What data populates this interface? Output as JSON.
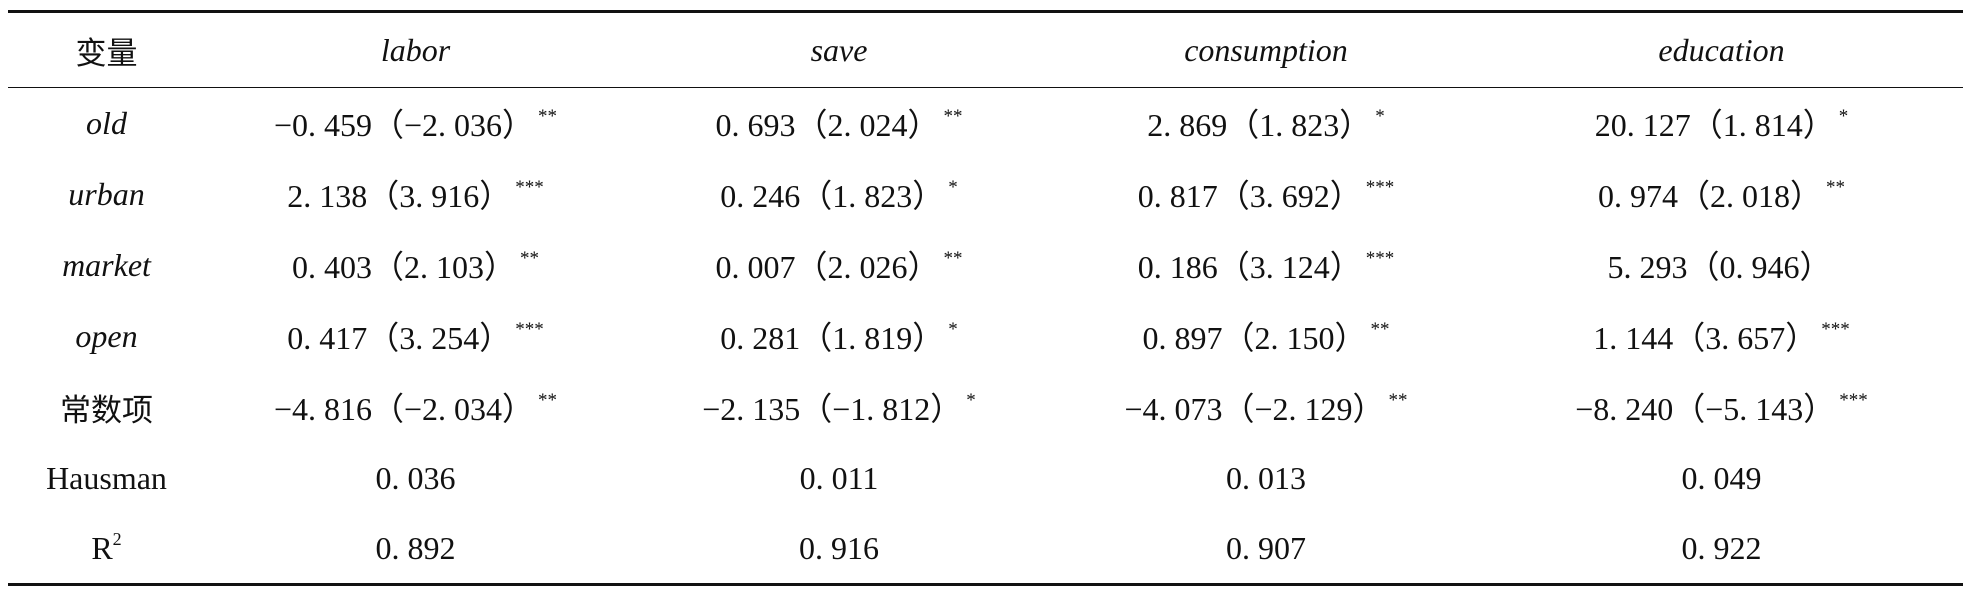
{
  "table": {
    "header": [
      "变量",
      "labor",
      "save",
      "consumption",
      "education"
    ],
    "rows": [
      {
        "label": "old",
        "cells": [
          {
            "value": "−0. 459（−2. 036）",
            "stars": "**"
          },
          {
            "value": "0. 693（2. 024）",
            "stars": "**"
          },
          {
            "value": "2. 869（1. 823）",
            "stars": "*"
          },
          {
            "value": "20. 127（1. 814）",
            "stars": "*"
          }
        ]
      },
      {
        "label": "urban",
        "cells": [
          {
            "value": "2. 138（3. 916）",
            "stars": "***"
          },
          {
            "value": "0. 246（1. 823）",
            "stars": "*"
          },
          {
            "value": "0. 817（3. 692）",
            "stars": "***"
          },
          {
            "value": "0. 974（2. 018）",
            "stars": "**"
          }
        ]
      },
      {
        "label": "market",
        "cells": [
          {
            "value": "0. 403（2. 103）",
            "stars": "**"
          },
          {
            "value": "0. 007（2. 026）",
            "stars": "**"
          },
          {
            "value": "0. 186（3. 124）",
            "stars": "***"
          },
          {
            "value": "5. 293（0. 946）",
            "stars": ""
          }
        ]
      },
      {
        "label": "open",
        "cells": [
          {
            "value": "0. 417（3. 254）",
            "stars": "***"
          },
          {
            "value": "0. 281（1. 819）",
            "stars": "*"
          },
          {
            "value": "0. 897（2. 150）",
            "stars": "**"
          },
          {
            "value": "1. 144（3. 657）",
            "stars": "***"
          }
        ]
      },
      {
        "label": "常数项",
        "cells": [
          {
            "value": "−4. 816（−2. 034）",
            "stars": "**"
          },
          {
            "value": "−2. 135（−1. 812）",
            "stars": "*"
          },
          {
            "value": "−4. 073（−2. 129）",
            "stars": "**"
          },
          {
            "value": "−8. 240（−5. 143）",
            "stars": "***"
          }
        ]
      },
      {
        "label": "Hausman",
        "cells": [
          {
            "value": "0. 036",
            "stars": ""
          },
          {
            "value": "0. 011",
            "stars": ""
          },
          {
            "value": "0. 013",
            "stars": ""
          },
          {
            "value": "0. 049",
            "stars": ""
          }
        ]
      },
      {
        "label": "R",
        "label_sup": "2",
        "cells": [
          {
            "value": "0. 892",
            "stars": ""
          },
          {
            "value": "0. 916",
            "stars": ""
          },
          {
            "value": "0. 907",
            "stars": ""
          },
          {
            "value": "0. 922",
            "stars": ""
          }
        ]
      }
    ]
  }
}
